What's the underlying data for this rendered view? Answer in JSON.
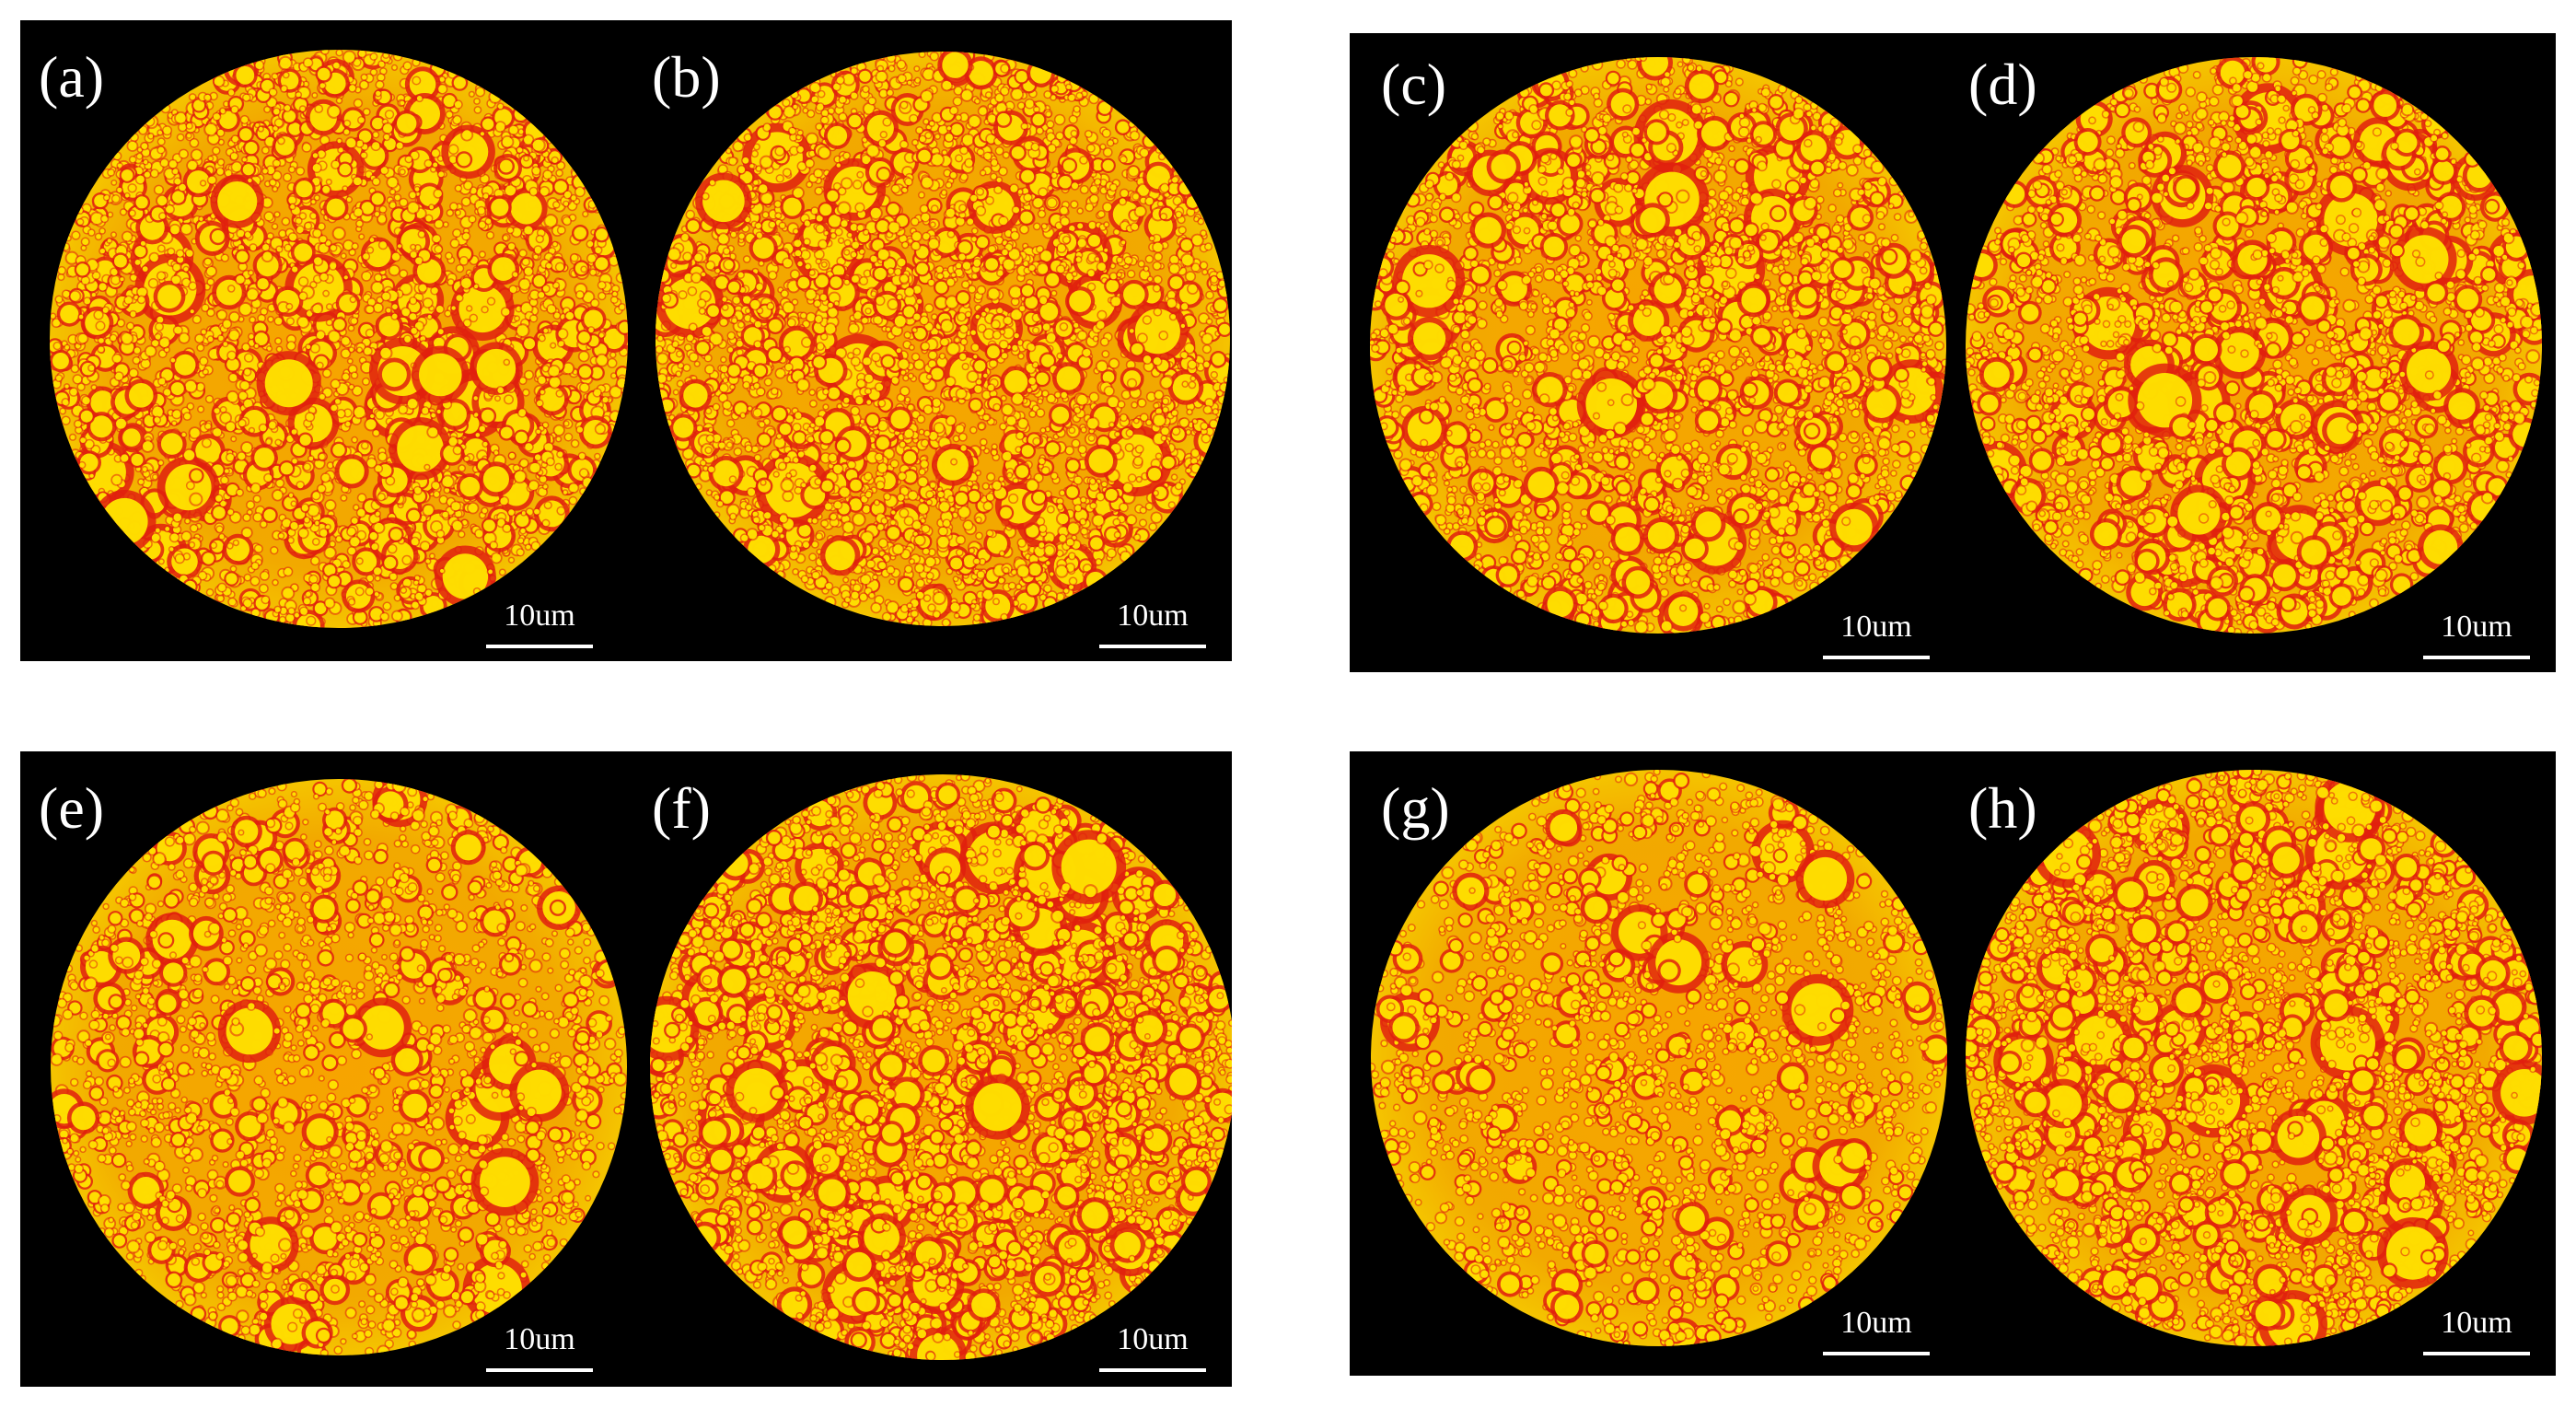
{
  "figure": {
    "background_color": "#000000",
    "droplet_field_color": "#f2a900",
    "droplet_core_color": "#ffe600",
    "droplet_rim_color": "#e0200e",
    "scale_bar_color": "#ffffff",
    "panels": [
      {
        "label": "(a)",
        "scale_bar": "10um"
      },
      {
        "label": "(b)",
        "scale_bar": "10um"
      },
      {
        "label": "(c)",
        "scale_bar": "10um"
      },
      {
        "label": "(d)",
        "scale_bar": "10um"
      },
      {
        "label": "(e)",
        "scale_bar": "10um"
      },
      {
        "label": "(f)",
        "scale_bar": "10um"
      },
      {
        "label": "(g)",
        "scale_bar": "10um"
      },
      {
        "label": "(h)",
        "scale_bar": "10um"
      }
    ]
  }
}
